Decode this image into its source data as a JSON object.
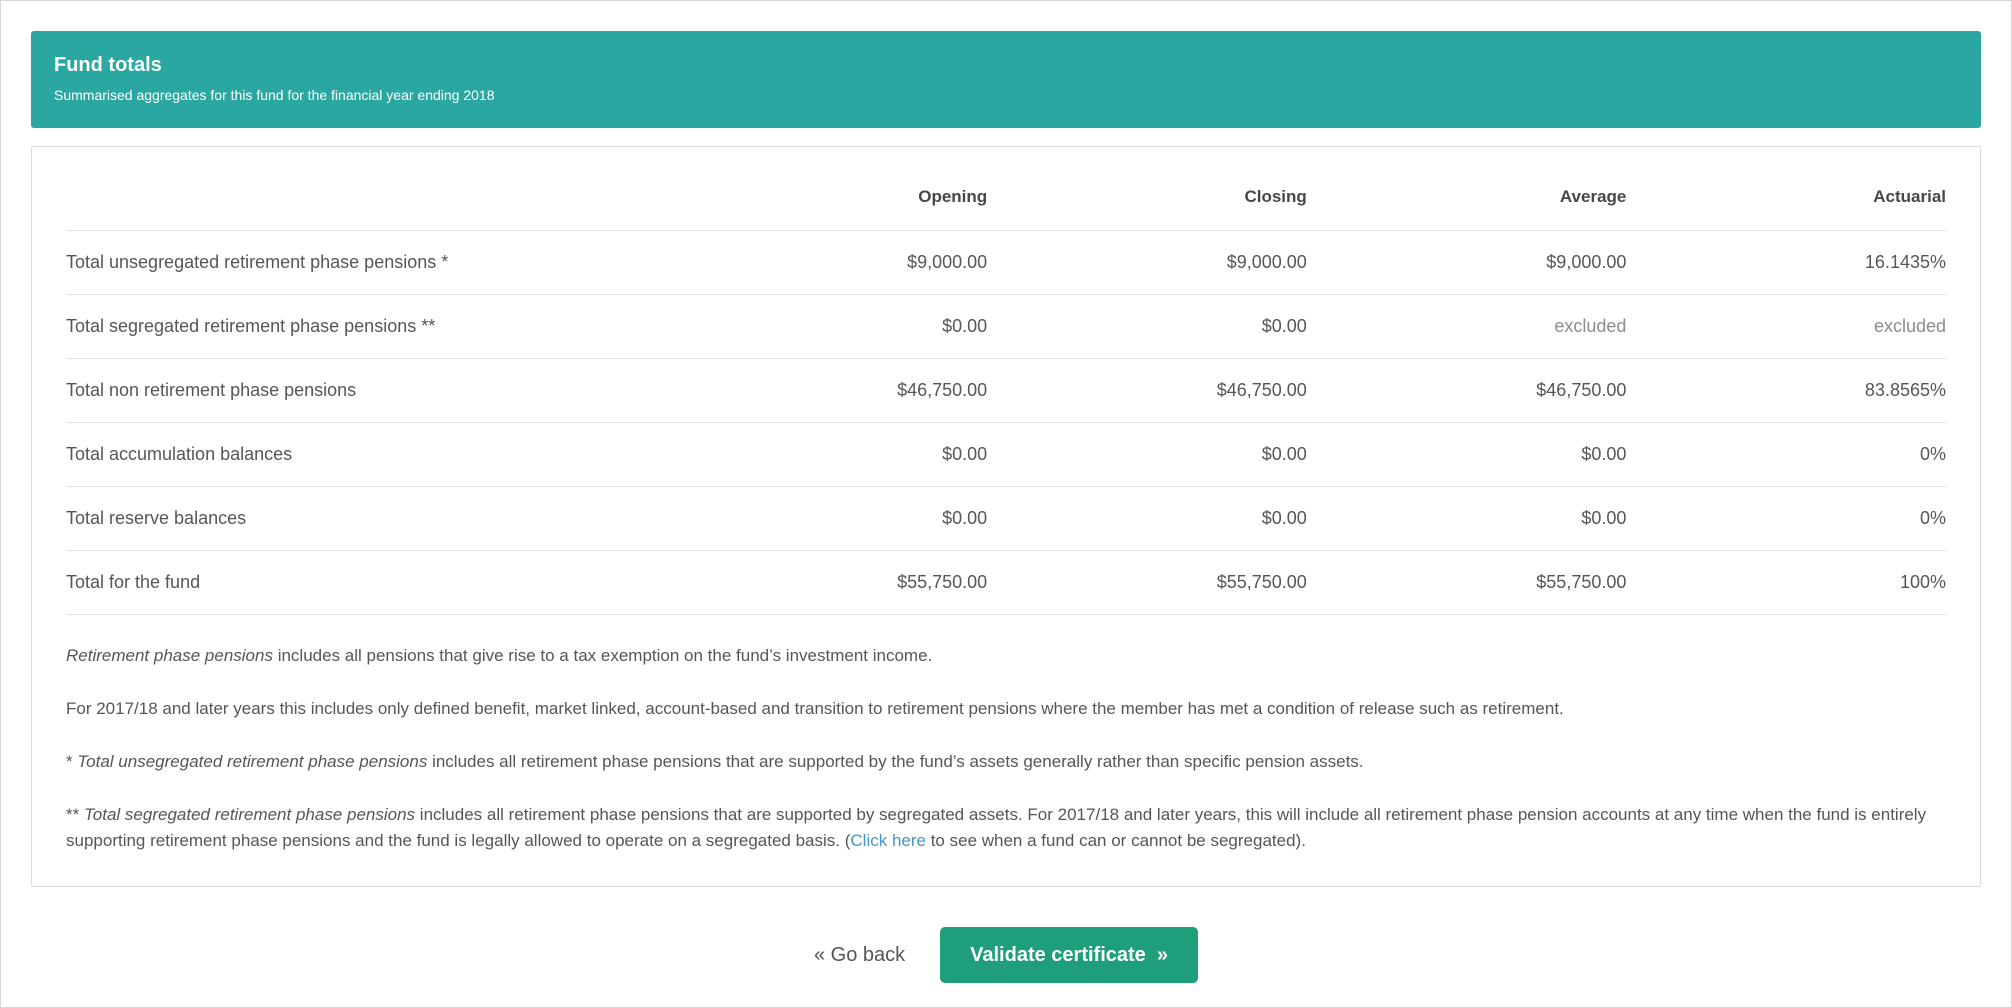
{
  "banner": {
    "title": "Fund totals",
    "subtitle": "Summarised aggregates for this fund for the financial year ending 2018"
  },
  "table": {
    "headers": [
      "",
      "Opening",
      "Closing",
      "Average",
      "Actuarial"
    ],
    "rows": [
      {
        "label": "Total unsegregated retirement phase pensions *",
        "opening": "$9,000.00",
        "closing": "$9,000.00",
        "average": "$9,000.00",
        "actuarial": "16.1435%"
      },
      {
        "label": "Total segregated retirement phase pensions **",
        "opening": "$0.00",
        "closing": "$0.00",
        "average": "excluded",
        "actuarial": "excluded"
      },
      {
        "label": "Total non retirement phase pensions",
        "opening": "$46,750.00",
        "closing": "$46,750.00",
        "average": "$46,750.00",
        "actuarial": "83.8565%"
      },
      {
        "label": "Total accumulation balances",
        "opening": "$0.00",
        "closing": "$0.00",
        "average": "$0.00",
        "actuarial": "0%"
      },
      {
        "label": "Total reserve balances",
        "opening": "$0.00",
        "closing": "$0.00",
        "average": "$0.00",
        "actuarial": "0%"
      },
      {
        "label": "Total for the fund",
        "opening": "$55,750.00",
        "closing": "$55,750.00",
        "average": "$55,750.00",
        "actuarial": "100%"
      }
    ]
  },
  "notes": {
    "note1": {
      "italic": "Retirement phase pensions",
      "rest": " includes all pensions that give rise to a tax exemption on the fund’s investment income."
    },
    "note2": "For 2017/18 and later years this includes only defined benefit, market linked, account-based and transition to retirement pensions where the member has met a condition of release such as retirement.",
    "note3": {
      "prefix": "* ",
      "italic": "Total unsegregated retirement phase pensions",
      "rest": " includes all retirement phase pensions that are supported by the fund’s assets generally rather than specific pension assets."
    },
    "note4": {
      "prefix": "** ",
      "italic": "Total segregated retirement phase pensions",
      "before_link": " includes all retirement phase pensions that are supported by segregated assets. For 2017/18 and later years, this will include all retirement phase pension accounts at any time when the fund is entirely supporting retirement phase pensions and the fund is legally allowed to operate on a segregated basis. (",
      "link": "Click here",
      "after_link": " to see when a fund can or cannot be segregated)."
    }
  },
  "actions": {
    "go_back_label": "« Go back",
    "validate_label": "Validate certificate  »"
  },
  "colors": {
    "banner_teal": "#2aa7a0",
    "button_green": "#1f9e7c",
    "link_blue": "#4197c7",
    "muted_text": "#8c8c8c"
  }
}
